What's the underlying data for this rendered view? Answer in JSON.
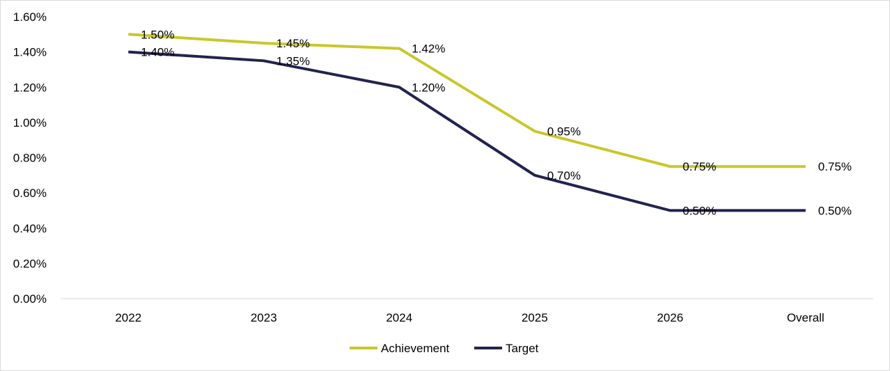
{
  "chart_data": {
    "type": "line",
    "title": "",
    "xlabel": "",
    "ylabel": "",
    "categories": [
      "2022",
      "2023",
      "2024",
      "2025",
      "2026",
      "Overall"
    ],
    "ylim": [
      0,
      1.6
    ],
    "yticks": [
      {
        "value": 0.0,
        "label": "0.00%"
      },
      {
        "value": 0.2,
        "label": "0.20%"
      },
      {
        "value": 0.4,
        "label": "0.40%"
      },
      {
        "value": 0.6,
        "label": "0.60%"
      },
      {
        "value": 0.8,
        "label": "0.80%"
      },
      {
        "value": 1.0,
        "label": "1.00%"
      },
      {
        "value": 1.2,
        "label": "1.20%"
      },
      {
        "value": 1.4,
        "label": "1.40%"
      },
      {
        "value": 1.6,
        "label": "1.60%"
      }
    ],
    "grid": false,
    "legend_position": "bottom",
    "series": [
      {
        "name": "Achievement",
        "color": "#c9c72c",
        "values": [
          1.5,
          1.45,
          1.42,
          0.95,
          0.75,
          0.75
        ],
        "labels": [
          "1.50%",
          "1.45%",
          "1.42%",
          "0.95%",
          "0.75%",
          "0.75%"
        ]
      },
      {
        "name": "Target",
        "color": "#23234f",
        "values": [
          1.4,
          1.35,
          1.2,
          0.7,
          0.5,
          0.5
        ],
        "labels": [
          "1.40%",
          "1.35%",
          "1.20%",
          "0.70%",
          "0.50%",
          "0.50%"
        ]
      }
    ]
  }
}
